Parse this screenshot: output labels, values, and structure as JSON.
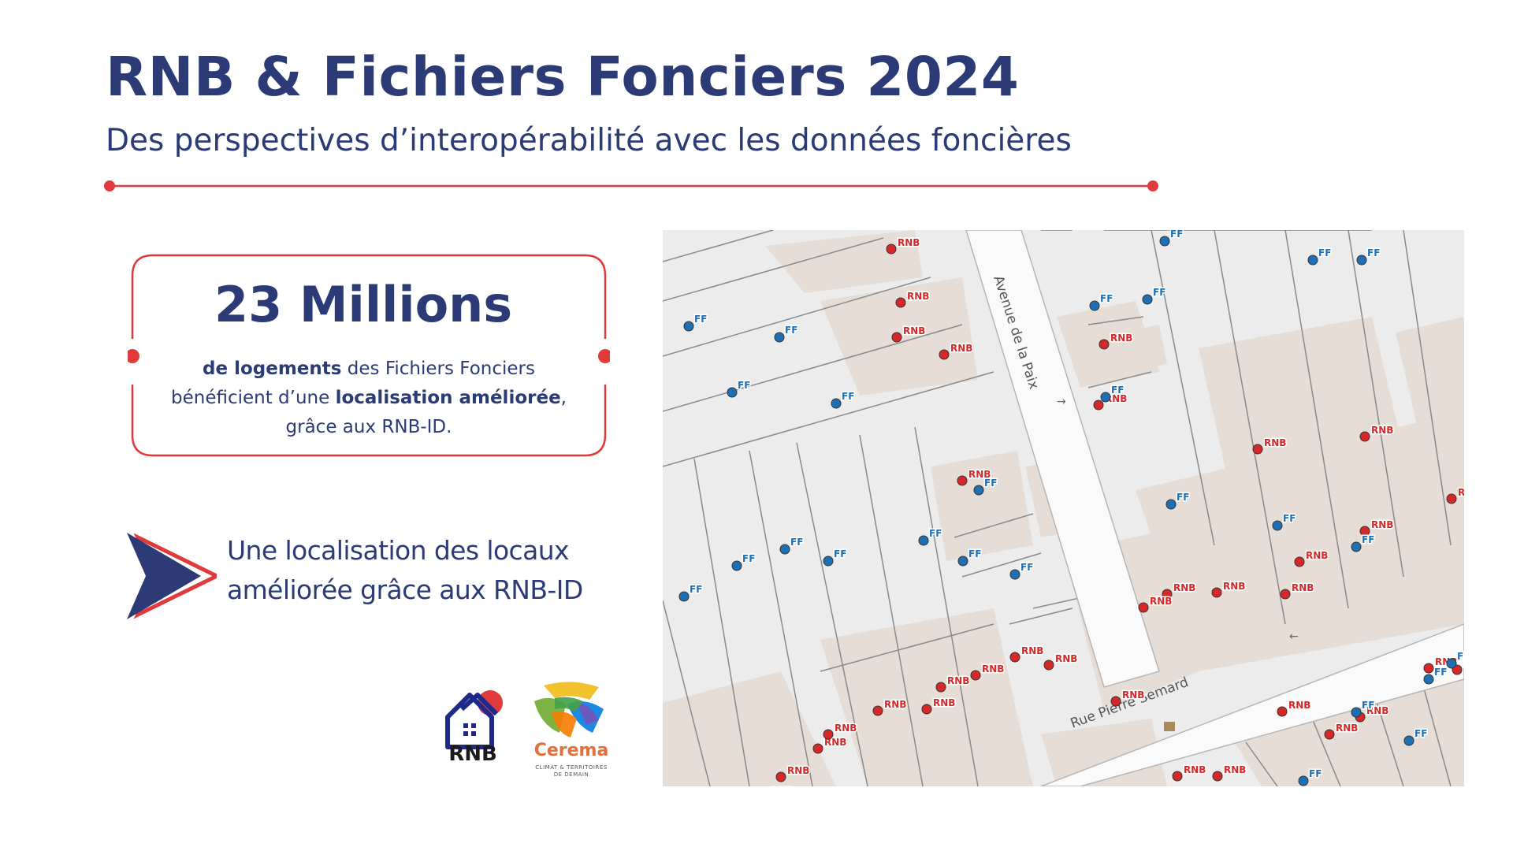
{
  "header": {
    "title": "RNB & Fichiers Fonciers 2024",
    "subtitle": "Des perspectives d’interopérabilité avec les données foncières"
  },
  "stat": {
    "number": "23 Millions",
    "desc_bold_1": "de logements",
    "desc_text_1": " des Fichiers Fonciers bénéficient d’une ",
    "desc_bold_2": "localisation améliorée",
    "desc_text_2": ", grâce aux RNB-ID."
  },
  "highlight": {
    "line1": "Une localisation des locaux",
    "line2": "améliorée grâce aux RNB-ID"
  },
  "logos": {
    "rnb": "RNB",
    "cerema": "Cerema",
    "cerema_tagline_1": "CLIMAT & TERRITOIRES",
    "cerema_tagline_2": "DE DEMAIN"
  },
  "map": {
    "street_1": "Avenue de la Paix",
    "street_2": "Rue Pierre Semard",
    "label_rnb": "RNB",
    "label_ff": "FF",
    "colors": {
      "rnb": "#d62828",
      "ff": "#1f6fb5",
      "building": "#e5ddd6",
      "road": "#fafafa",
      "parcel_line": "#8a8a8a"
    }
  },
  "colors": {
    "primary": "#2c3b75",
    "accent": "#e03a3a"
  }
}
